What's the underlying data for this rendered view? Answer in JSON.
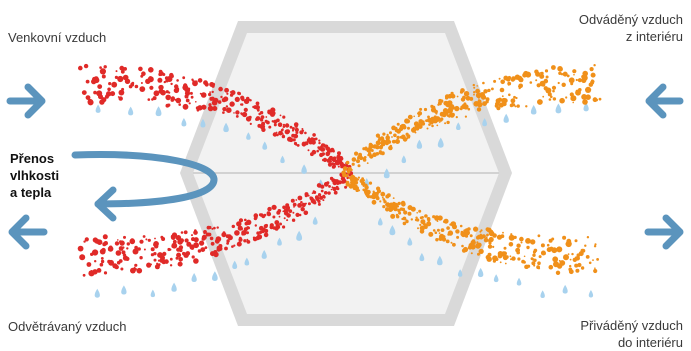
{
  "labels": {
    "outdoor_air": "Venkovní vzduch",
    "extract_air": [
      "Odváděný vzduch",
      "z interiéru"
    ],
    "exhaust_air": "Odvětrávaný vzduch",
    "supply_air": [
      "Přiváděný vzduch",
      "do interiéru"
    ],
    "transfer": [
      "Přenos",
      "vlhkosti",
      "a tepla"
    ]
  },
  "colors": {
    "hot_dots": "#e02a28",
    "warm_dots": "#f0901a",
    "drops": "#a8d2ee",
    "arrow": "#5b94bd",
    "exchanger_frame": "#d9d9d9",
    "exchanger_fill": "#f2f2f2",
    "exchanger_divider": "#c8c8c8"
  },
  "icons": {
    "flow_arrows": "arrow-icon",
    "humidity": "water-drop-icon"
  }
}
